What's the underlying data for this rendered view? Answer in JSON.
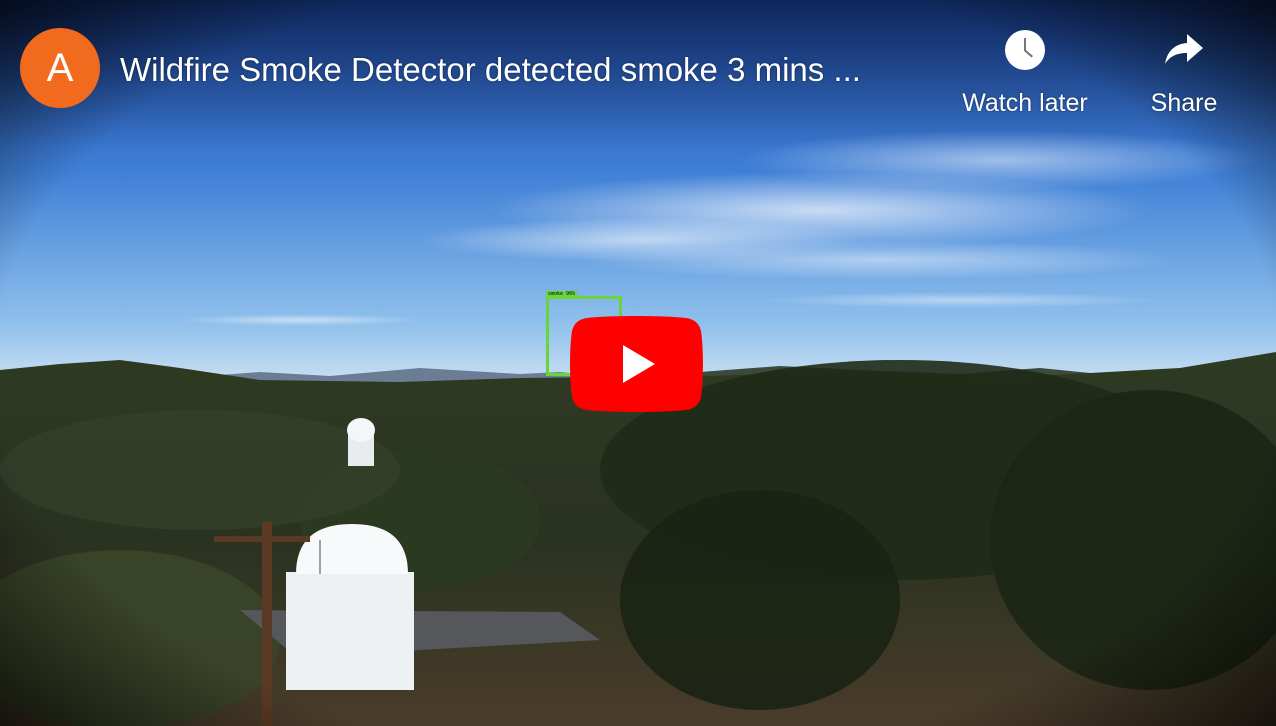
{
  "channel": {
    "avatar_letter": "A",
    "avatar_color": "#f26a1e"
  },
  "video": {
    "title": "Wildfire Smoke Detector detected smoke 3 mins ..."
  },
  "actions": {
    "watch_later": {
      "label": "Watch later",
      "icon": "clock-icon"
    },
    "share": {
      "label": "Share",
      "icon": "share-arrow-icon"
    }
  },
  "detection": {
    "label": "smoke 96%",
    "box_color": "#68d63a"
  },
  "play": {
    "icon": "youtube-play-icon",
    "color": "#ff0000"
  }
}
